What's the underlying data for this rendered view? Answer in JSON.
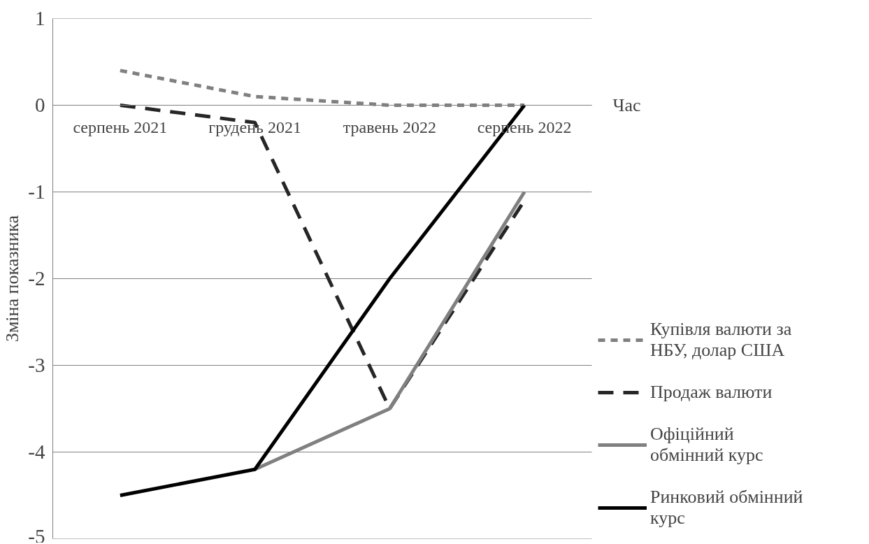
{
  "chart_data": {
    "type": "line",
    "xlabel": "Час",
    "ylabel": "Зміна показника",
    "categories": [
      "серпень 2021",
      "грудень 2021",
      "травень 2022",
      "серпень 2022"
    ],
    "series": [
      {
        "name": "Купівля валюти за НБУ, долар США",
        "color": "#808080",
        "line_style": "dashed",
        "values": [
          0.4,
          0.1,
          0,
          0
        ]
      },
      {
        "name": "Продаж валюти",
        "color": "#262626",
        "line_style": "dashed",
        "values": [
          0,
          -0.2,
          -3.5,
          -1.1
        ]
      },
      {
        "name": "Офіційний обмінний курс",
        "color": "#808080",
        "line_style": "solid",
        "values": [
          null,
          -4.2,
          -3.5,
          -1
        ]
      },
      {
        "name": "Ринковий обмінний курс",
        "color": "#000000",
        "line_style": "solid",
        "values": [
          -4.5,
          -4.2,
          -2,
          0
        ]
      }
    ],
    "ylim": [
      -5,
      1
    ],
    "yticks": [
      -5,
      -4,
      -3,
      -2,
      -1,
      0,
      1
    ],
    "grid": "y",
    "legend": "right",
    "marker": "none"
  }
}
